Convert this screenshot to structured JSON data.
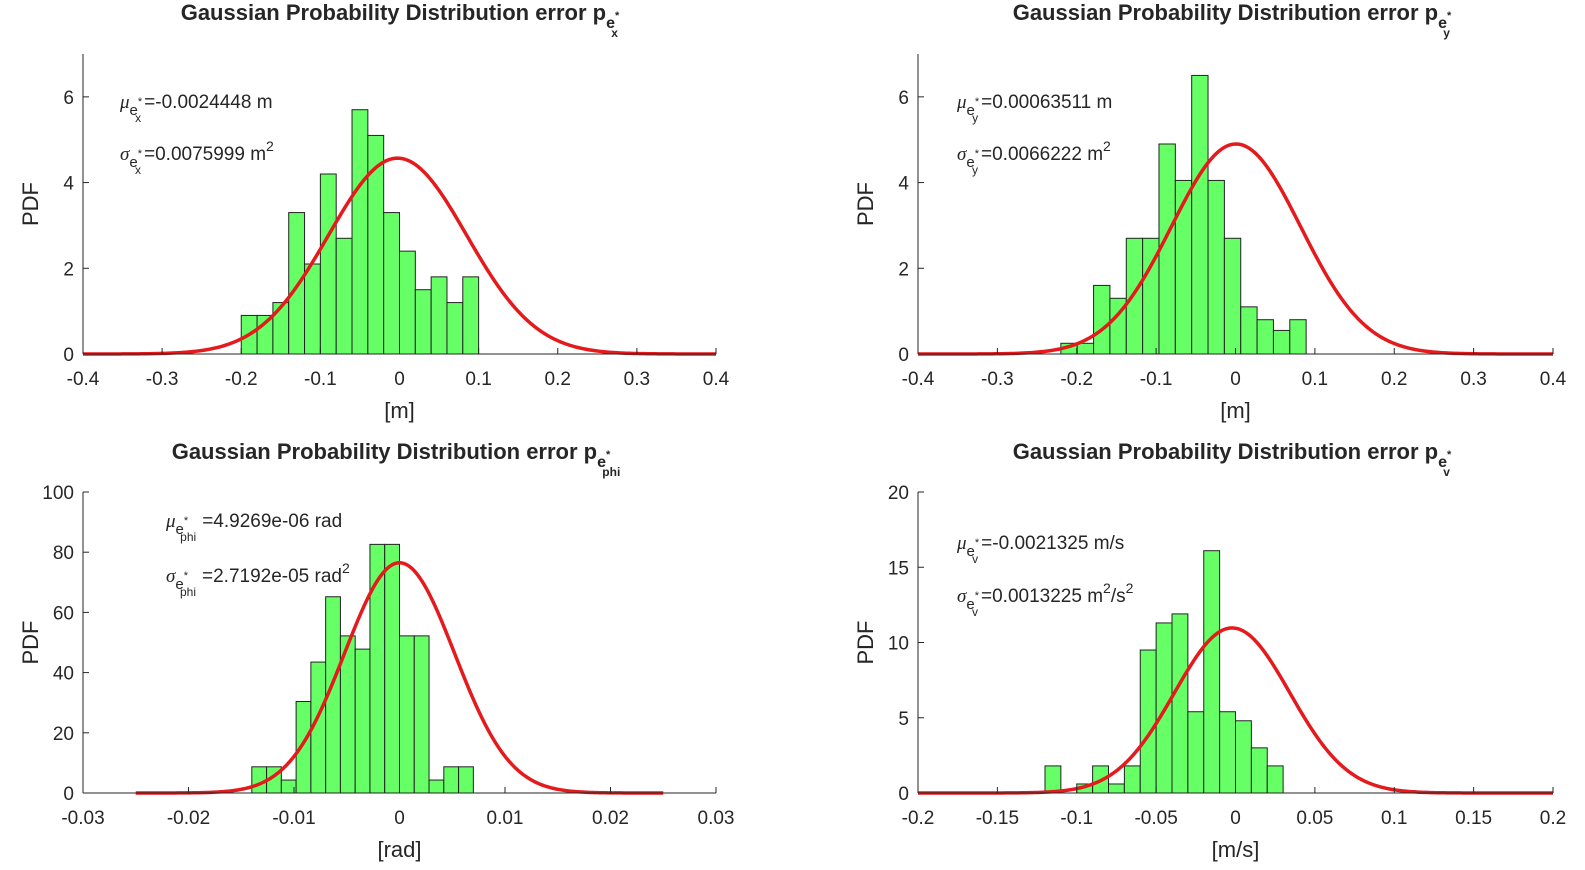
{
  "colors": {
    "bar_fill": "#66ff66",
    "bar_edge": "#222222",
    "curve": "#e41a1c"
  },
  "chart_data": [
    {
      "type": "bar",
      "title": {
        "base": "Gaussian Probability Distribution error p",
        "sub": "e",
        "subsub": "x",
        "star": "*"
      },
      "xlabel": "[m]",
      "ylabel": "PDF",
      "xlim": [
        -0.4,
        0.4
      ],
      "ylim": [
        0,
        7
      ],
      "xticks": [
        -0.4,
        -0.3,
        -0.2,
        -0.1,
        0,
        0.1,
        0.2,
        0.3,
        0.4
      ],
      "xtick_labels": [
        "-0.4",
        "-0.3",
        "-0.2",
        "-0.1",
        "0",
        "0.1",
        "0.2",
        "0.3",
        "0.4"
      ],
      "yticks": [
        0,
        2,
        4,
        6
      ],
      "ytick_labels": [
        "0",
        "2",
        "4",
        "6"
      ],
      "bins": {
        "start": -0.2,
        "width": 0.02,
        "values": [
          0.9,
          0.9,
          1.2,
          3.3,
          2.1,
          4.2,
          2.7,
          5.7,
          5.1,
          3.3,
          2.4,
          1.5,
          1.8,
          1.2,
          1.8
        ]
      },
      "fit": {
        "mu": -0.0024448,
        "sigma": 0.0873,
        "range": [
          -0.4,
          0.4
        ]
      },
      "annotations": {
        "mean": {
          "symbol": "μ",
          "sub": "e",
          "subsub": "x",
          "star": "*",
          "text": "=-0.0024448 m"
        },
        "variance": {
          "symbol": "σ",
          "sub": "e",
          "subsub": "x",
          "star": "*",
          "text": "=0.0075999 m",
          "sup": "2"
        }
      }
    },
    {
      "type": "bar",
      "title": {
        "base": "Gaussian Probability Distribution error p",
        "sub": "e",
        "subsub": "y",
        "star": "*"
      },
      "xlabel": "[m]",
      "ylabel": "PDF",
      "xlim": [
        -0.4,
        0.4
      ],
      "ylim": [
        0,
        7
      ],
      "xticks": [
        -0.4,
        -0.3,
        -0.2,
        -0.1,
        0,
        0.1,
        0.2,
        0.3,
        0.4
      ],
      "xtick_labels": [
        "-0.4",
        "-0.3",
        "-0.2",
        "-0.1",
        "0",
        "0.1",
        "0.2",
        "0.3",
        "0.4"
      ],
      "yticks": [
        0,
        2,
        4,
        6
      ],
      "ytick_labels": [
        "0",
        "2",
        "4",
        "6"
      ],
      "bins": {
        "start": -0.22,
        "width": 0.0206,
        "values": [
          0.25,
          0.25,
          1.6,
          1.3,
          2.7,
          2.7,
          4.9,
          4.05,
          6.5,
          4.05,
          2.7,
          1.1,
          0.8,
          0.55,
          0.8
        ]
      },
      "fit": {
        "mu": 0.00063511,
        "sigma": 0.0814,
        "range": [
          -0.4,
          0.4
        ]
      },
      "annotations": {
        "mean": {
          "symbol": "μ",
          "sub": "e",
          "subsub": "y",
          "star": "*",
          "text": "=0.00063511 m"
        },
        "variance": {
          "symbol": "σ",
          "sub": "e",
          "subsub": "y",
          "star": "*",
          "text": "=0.0066222 m",
          "sup": "2"
        }
      }
    },
    {
      "type": "bar",
      "title": {
        "base": "Gaussian Probability Distribution error p",
        "sub": "e",
        "subsub": "phi",
        "star": "*"
      },
      "xlabel": "[rad]",
      "ylabel": "PDF",
      "xlim": [
        -0.03,
        0.03
      ],
      "ylim": [
        0,
        100
      ],
      "xticks": [
        -0.03,
        -0.02,
        -0.01,
        0,
        0.01,
        0.02,
        0.03
      ],
      "xtick_labels": [
        "-0.03",
        "-0.02",
        "-0.01",
        "0",
        "0.01",
        "0.02",
        "0.03"
      ],
      "yticks": [
        0,
        20,
        40,
        60,
        80,
        100
      ],
      "ytick_labels": [
        "0",
        "20",
        "40",
        "60",
        "80",
        "100"
      ],
      "bins": {
        "start": -0.014,
        "width": 0.0014,
        "values": [
          8.7,
          8.7,
          4.3,
          30.4,
          43.5,
          65.2,
          52.2,
          47.8,
          82.6,
          82.6,
          52.2,
          52.2,
          4.3,
          8.7,
          8.7
        ]
      },
      "fit": {
        "mu": 4.9269e-06,
        "sigma": 0.005215,
        "range": [
          -0.025,
          0.025
        ]
      },
      "annotations": {
        "mean": {
          "symbol": "μ",
          "sub": "e",
          "subsub": "phi",
          "star": "*",
          "text": "=4.9269e-06  rad"
        },
        "variance": {
          "symbol": "σ",
          "sub": "e",
          "subsub": "phi",
          "star": "*",
          "text": "=2.7192e-05  rad",
          "sup": "2"
        }
      }
    },
    {
      "type": "bar",
      "title": {
        "base": "Gaussian Probability Distribution error p",
        "sub": "e",
        "subsub": "v",
        "star": "*"
      },
      "xlabel": "[m/s]",
      "ylabel": "PDF",
      "xlim": [
        -0.2,
        0.2
      ],
      "ylim": [
        0,
        20
      ],
      "xticks": [
        -0.2,
        -0.15,
        -0.1,
        -0.05,
        0,
        0.05,
        0.1,
        0.15,
        0.2
      ],
      "xtick_labels": [
        "-0.2",
        "-0.15",
        "-0.1",
        "-0.05",
        "0",
        "0.05",
        "0.1",
        "0.15",
        "0.2"
      ],
      "yticks": [
        0,
        5,
        10,
        15,
        20
      ],
      "ytick_labels": [
        "0",
        "5",
        "10",
        "15",
        "20"
      ],
      "bins": {
        "start": -0.12,
        "width": 0.01,
        "values": [
          1.8,
          0,
          0.6,
          1.8,
          0.6,
          1.8,
          9.5,
          11.3,
          11.9,
          5.4,
          16.1,
          5.4,
          4.8,
          3.0,
          1.8
        ]
      },
      "fit": {
        "mu": -0.0021325,
        "sigma": 0.03637,
        "range": [
          -0.2,
          0.2
        ]
      },
      "annotations": {
        "mean": {
          "symbol": "μ",
          "sub": "e",
          "subsub": "v",
          "star": "*",
          "text": "=-0.0021325  m/s"
        },
        "variance": {
          "symbol": "σ",
          "sub": "e",
          "subsub": "v",
          "star": "*",
          "text": "=0.0013225  m",
          "sup": "2",
          "text2": "/s",
          "sup2": "2"
        }
      }
    }
  ]
}
